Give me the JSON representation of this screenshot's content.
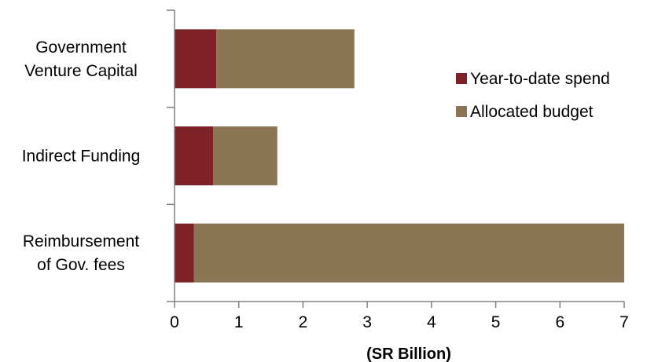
{
  "chart_data": {
    "type": "bar",
    "orientation": "horizontal",
    "stacked": true,
    "categories": [
      [
        "Government",
        "Venture Capital"
      ],
      [
        "Indirect Funding"
      ],
      [
        "Reimbursement",
        "of Gov. fees"
      ]
    ],
    "series": [
      {
        "name": "Year-to-date spend",
        "color": "#7f2228",
        "values": [
          0.65,
          0.6,
          0.3
        ]
      },
      {
        "name": "Allocated budget",
        "color": "#8b7555",
        "values": [
          2.15,
          1.0,
          6.7
        ]
      }
    ],
    "xlabel": "(SR Billion)",
    "xlim": [
      0,
      7
    ],
    "xticks": [
      "0",
      "1",
      "2",
      "3",
      "4",
      "5",
      "6",
      "7"
    ],
    "grid": false,
    "legend_position": "top-right"
  }
}
